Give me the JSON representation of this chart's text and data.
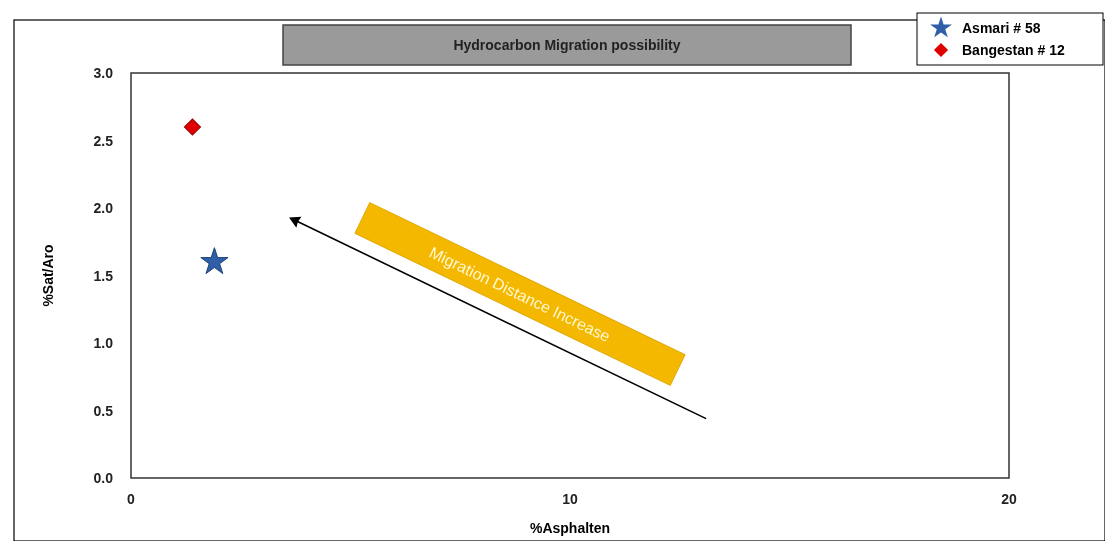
{
  "chart_data": {
    "type": "scatter",
    "title": "Hydrocarbon Migration possibility",
    "xlabel": "%Asphalten",
    "ylabel": "%Sat/Aro",
    "xlim": [
      0,
      20
    ],
    "xticks": [
      0,
      10,
      20
    ],
    "ylim": [
      0,
      3
    ],
    "yticks": [
      {
        "value": 0,
        "label": "0.0"
      },
      {
        "value": 0.5,
        "label": "0.5"
      },
      {
        "value": 1,
        "label": "1.0"
      },
      {
        "value": 1.5,
        "label": "1.5"
      },
      {
        "value": 2,
        "label": "2.0"
      },
      {
        "value": 2.5,
        "label": "2.5"
      },
      {
        "value": 3,
        "label": "3.0"
      }
    ],
    "series": [
      {
        "name": "Asmari # 58",
        "color": "#2e5fa8",
        "marker": "star",
        "x": [
          1.9
        ],
        "values": [
          1.6
        ]
      },
      {
        "name": "Bangestan # 12",
        "color": "#e00000",
        "marker": "diamond",
        "x": [
          1.4
        ],
        "values": [
          2.6
        ]
      }
    ],
    "annotations": [
      "Migration Distance Increase"
    ],
    "grid": false,
    "legend": "top right"
  }
}
